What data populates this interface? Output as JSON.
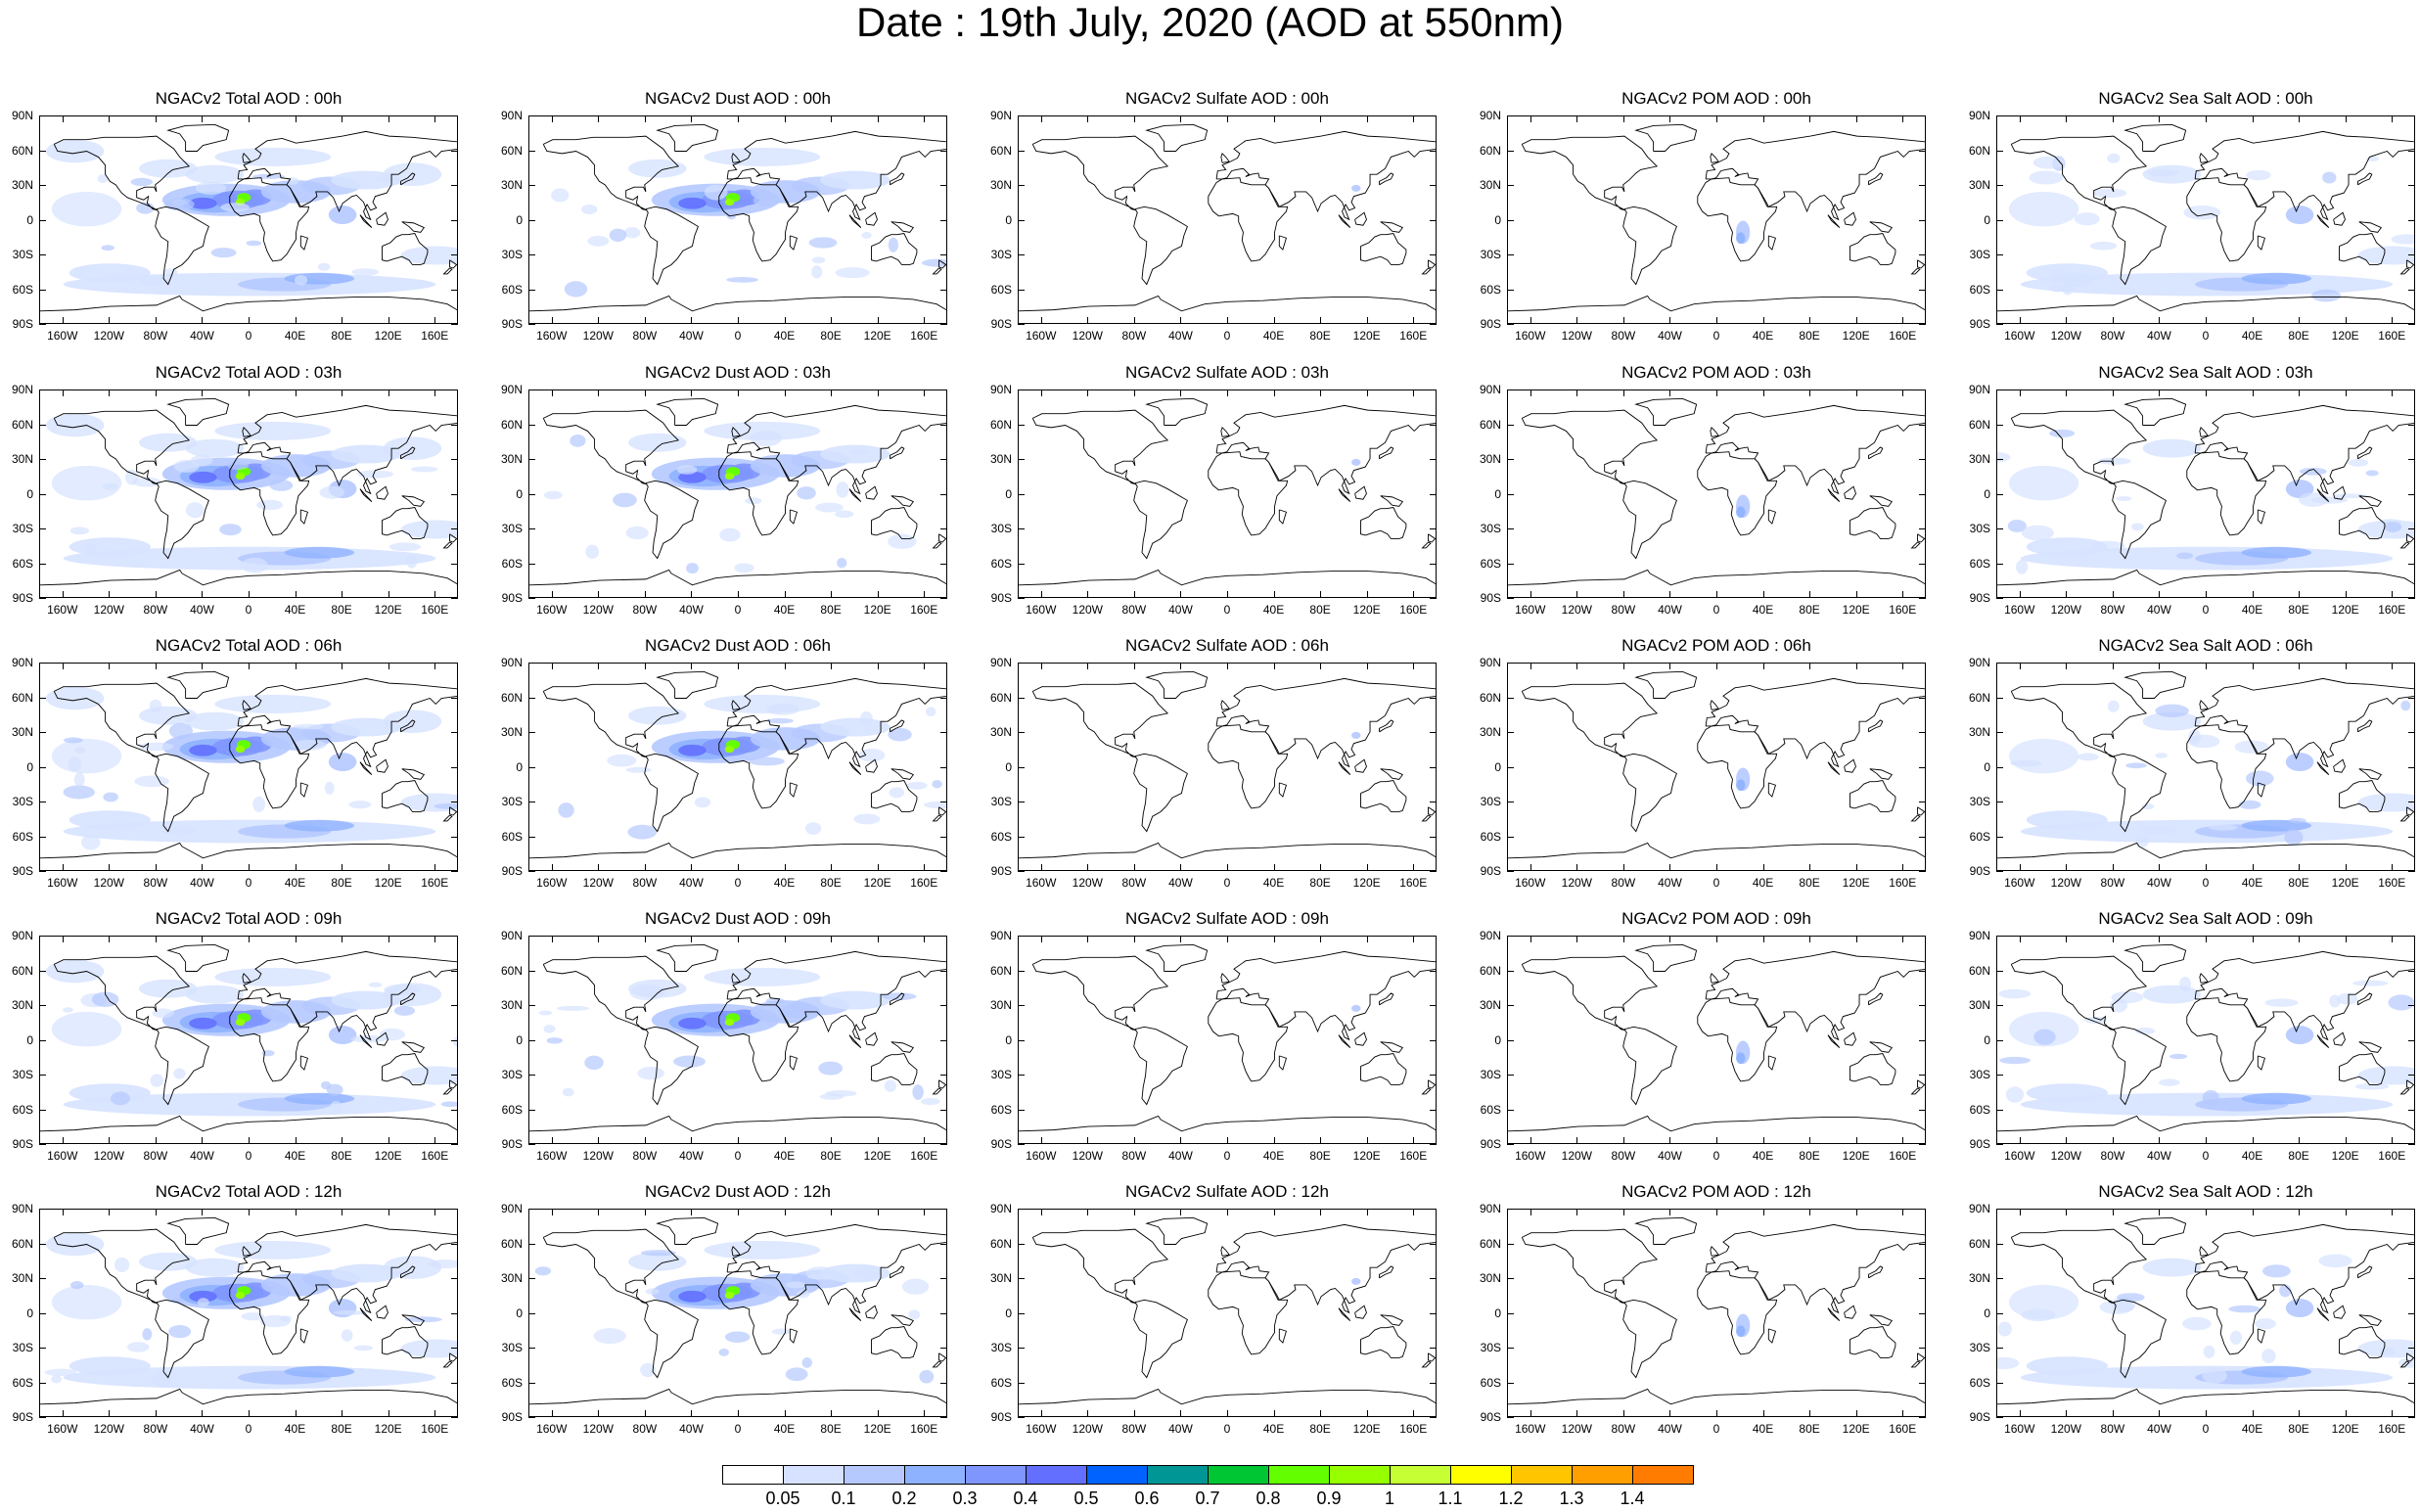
{
  "title": "Date : 19th July, 2020 (AOD at 550nm)",
  "lat_labels": [
    "90N",
    "60N",
    "30N",
    "0",
    "30S",
    "60S",
    "90S"
  ],
  "lon_labels": [
    "160W",
    "120W",
    "80W",
    "40W",
    "0",
    "40E",
    "80E",
    "120E",
    "160E"
  ],
  "lon_values": [
    -160,
    -120,
    -80,
    -40,
    0,
    40,
    80,
    120,
    160
  ],
  "lat_values": [
    90,
    60,
    30,
    0,
    -30,
    -60,
    -90
  ],
  "panels": [
    [
      "NGACv2 Total AOD : 00h",
      "NGACv2 Dust AOD : 00h",
      "NGACv2 Sulfate AOD : 00h",
      "NGACv2 POM AOD : 00h",
      "NGACv2 Sea Salt AOD : 00h"
    ],
    [
      "NGACv2 Total AOD : 03h",
      "NGACv2 Dust AOD : 03h",
      "NGACv2 Sulfate AOD : 03h",
      "NGACv2 POM AOD : 03h",
      "NGACv2 Sea Salt AOD : 03h"
    ],
    [
      "NGACv2 Total AOD : 06h",
      "NGACv2 Dust AOD : 06h",
      "NGACv2 Sulfate AOD : 06h",
      "NGACv2 POM AOD : 06h",
      "NGACv2 Sea Salt AOD : 06h"
    ],
    [
      "NGACv2 Total AOD : 09h",
      "NGACv2 Dust AOD : 09h",
      "NGACv2 Sulfate AOD : 09h",
      "NGACv2 POM AOD : 09h",
      "NGACv2 Sea Salt  AOD : 09h"
    ],
    [
      "NGACv2 Total AOD : 12h",
      "NGACv2 Dust AOD : 12h",
      "NGACv2 Sulfate AOD : 12h",
      "NGACv2 POM  AOD : 12h",
      "NGACv2 Sea Salt AOD : 12h"
    ]
  ],
  "colorbar": {
    "labels": [
      "0.05",
      "0.1",
      "0.2",
      "0.3",
      "0.4",
      "0.5",
      "0.6",
      "0.7",
      "0.8",
      "0.9",
      "1",
      "1.1",
      "1.2",
      "1.3",
      "1.4"
    ],
    "colors": [
      "#ffffff",
      "#d6e2ff",
      "#b5c9ff",
      "#8eb2ff",
      "#7f96ff",
      "#6370ff",
      "#0063ff",
      "#009696",
      "#00c633",
      "#63ff00",
      "#96ff00",
      "#c6ff33",
      "#ffff00",
      "#ffc600",
      "#ffa000",
      "#ff7c00",
      "#ff1900"
    ]
  }
}
